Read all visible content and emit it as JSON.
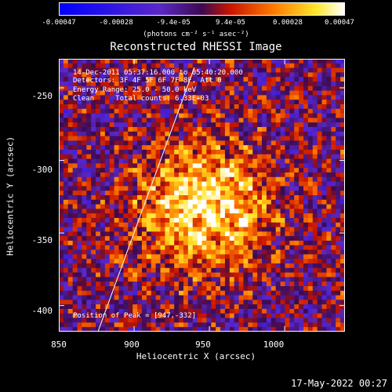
{
  "colorbar": {
    "ticks": [
      "-0.00047",
      "-0.00028",
      "-9.4e-05",
      "9.4e-05",
      "0.00028",
      "0.00047"
    ],
    "unit": "(photons cm⁻² s⁻¹ asec⁻²)"
  },
  "annotations": {
    "line1": "14-Dec-2011 05:37:16.000 to 05:40:20.000",
    "line2": "Detectors: 3F 4F 5F 6F 7F 8F, Att 0",
    "line3": "Energy Range: 25.0 - 50.0 keV",
    "line4": "Clean     Total counts: 6.33E+03",
    "peak": "Position of Peak = [947,-332]"
  },
  "footer": "17-May-2022 00:27",
  "chart_data": {
    "type": "heatmap",
    "title": "Reconstructed RHESSI Image",
    "xlabel": "Heliocentric X (arcsec)",
    "ylabel": "Heliocentric Y (arcsec)",
    "xlim": [
      850,
      1040
    ],
    "ylim": [
      -418,
      -230
    ],
    "xticks": [
      850,
      900,
      950,
      1000
    ],
    "yticks": [
      -250,
      -300,
      -350,
      -400
    ],
    "colormap": "blue-purple-red-yellow-white",
    "zrange": [
      -0.00047,
      0.00047
    ],
    "peak": [
      947,
      -332
    ],
    "limb_line": [
      [
        876,
        -418
      ],
      [
        940,
        -236
      ]
    ]
  }
}
